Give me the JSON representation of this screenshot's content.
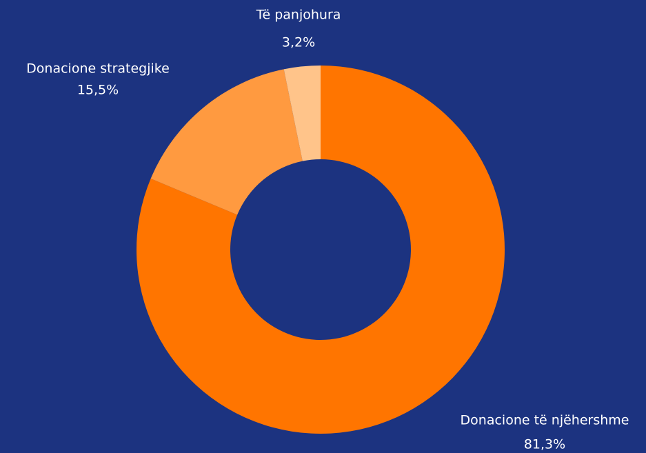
{
  "chart_data": {
    "type": "donut",
    "categories": [
      "Donacione të njëhershme",
      "Donacione strategjike",
      "Të panjohura"
    ],
    "values": [
      81.3,
      15.5,
      3.2
    ],
    "value_labels": [
      "81,3%",
      "15,5%",
      "3,2%"
    ],
    "colors": [
      "#ff7500",
      "#ff9a40",
      "#ffc48a"
    ]
  }
}
